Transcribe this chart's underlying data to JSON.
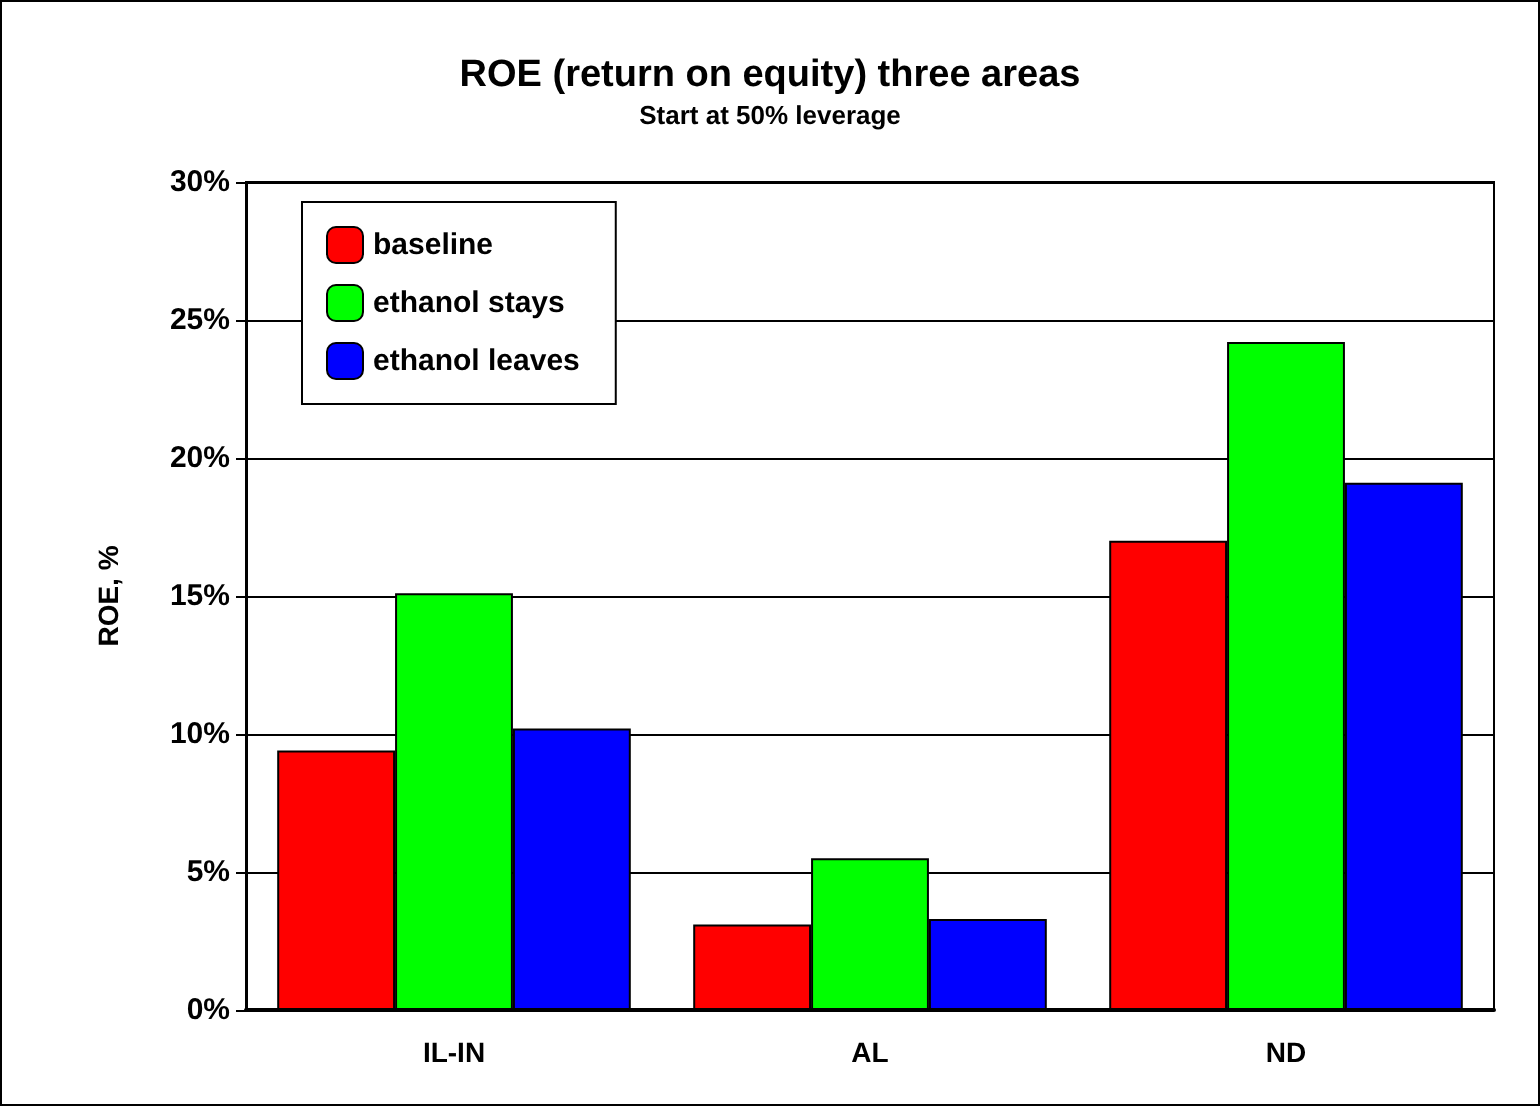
{
  "chart_data": {
    "type": "bar",
    "title": "ROE (return on equity) three areas",
    "subtitle": "Start at 50% leverage",
    "ylabel": "ROE, %",
    "categories": [
      "IL-IN",
      "AL",
      "ND"
    ],
    "series": [
      {
        "name": "baseline",
        "color": "#ff0000",
        "values": [
          9.4,
          3.1,
          17.0
        ]
      },
      {
        "name": "ethanol stays",
        "color": "#00ff00",
        "values": [
          15.1,
          5.5,
          24.2
        ]
      },
      {
        "name": "ethanol leaves",
        "color": "#0000ff",
        "values": [
          10.2,
          3.3,
          19.1
        ]
      }
    ],
    "ylim": [
      0,
      30
    ],
    "yticks": [
      {
        "value": 0,
        "label": "0%"
      },
      {
        "value": 5,
        "label": "5%"
      },
      {
        "value": 10,
        "label": "10%"
      },
      {
        "value": 15,
        "label": "15%"
      },
      {
        "value": 20,
        "label": "20%"
      },
      {
        "value": 25,
        "label": "25%"
      },
      {
        "value": 30,
        "label": "30%"
      }
    ],
    "grid": "y",
    "legend": "top left"
  }
}
